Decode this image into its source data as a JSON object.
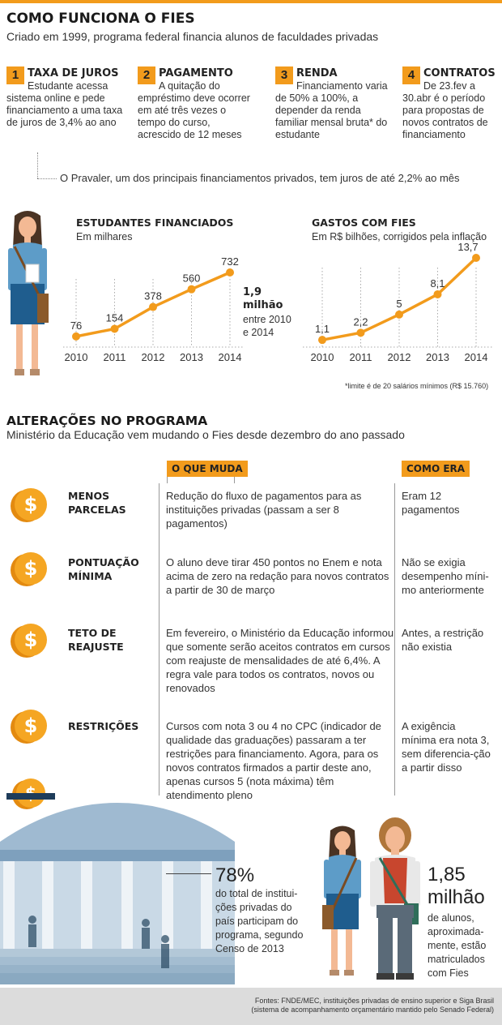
{
  "header": {
    "title": "COMO FUNCIONA O FIES",
    "subtitle": "Criado em 1999, programa federal financia alunos de faculdades privadas"
  },
  "steps": [
    {
      "num": "1",
      "title": "TAXA DE JUROS",
      "text": "Estudante acessa sistema online e pede financiamento a uma taxa de juros de 3,4% ao ano"
    },
    {
      "num": "2",
      "title": "PAGAMENTO",
      "text": "A quitação do empréstimo deve ocorrer em até três vezes o tempo do curso, acrescido de 12 meses"
    },
    {
      "num": "3",
      "title": "RENDA",
      "text": "Financiamento varia de 50% a 100%, a depender da renda familiar mensal bruta* do estudante"
    },
    {
      "num": "4",
      "title": "CONTRATOS",
      "text": "De 23.fev a 30.abr é o período para propostas de novos contratos de financiamento"
    }
  ],
  "pravaler_note": "O Pravaler, um dos principais financiamentos privados, tem juros de até 2,2% ao mês",
  "chart_data": [
    {
      "type": "line",
      "title": "ESTUDANTES FINANCIADOS",
      "subtitle": "Em milhares",
      "x": [
        "2010",
        "2011",
        "2012",
        "2013",
        "2014"
      ],
      "values": [
        76,
        154,
        378,
        560,
        732
      ],
      "labels": [
        "76",
        "154",
        "378",
        "560",
        "732"
      ],
      "annotation": {
        "value": "1,9 milhão",
        "text": "entre 2010 e 2014"
      }
    },
    {
      "type": "line",
      "title": "GASTOS COM FIES",
      "subtitle": "Em R$ bilhões, corrigidos pela inflação",
      "x": [
        "2010",
        "2011",
        "2012",
        "2013",
        "2014"
      ],
      "values": [
        1.1,
        2.2,
        5,
        8.1,
        13.7
      ],
      "labels": [
        "1,1",
        "2,2",
        "5",
        "8,1",
        "13,7"
      ]
    }
  ],
  "footnote": "*limite é de 20 salários mínimos (R$ 15.760)",
  "changes": {
    "title": "ALTERAÇÕES NO PROGRAMA",
    "subtitle": "Ministério da Educação vem mudando o Fies desde dezembro do ano passado",
    "col_what": "O QUE MUDA",
    "col_was": "COMO ERA",
    "rows": [
      {
        "label": "MENOS PARCELAS",
        "what": "Redução do fluxo de pagamentos para as instituições privadas (passam a ser 8 pagamentos)",
        "was": "Eram 12 pagamentos"
      },
      {
        "label": "PONTUAÇÃO MÍNIMA",
        "what": "O aluno deve tirar 450 pontos no Enem e nota acima de zero na redação para novos contratos a partir de 30 de março",
        "was": "Não se exigia desempenho míni-mo anteriormente"
      },
      {
        "label": "TETO DE REAJUSTE",
        "what": "Em fevereiro, o Ministério da Educação informou que somente serão aceitos contratos em cursos com reajuste de mensalidades de até 6,4%. A regra vale para todos os contratos, novos ou renovados",
        "was": "Antes, a restrição não existia"
      },
      {
        "label": "RESTRIÇÕES",
        "what": "Cursos com nota 3 ou 4 no CPC (indicador de qualidade das graduações) passaram a ter restrições para financiamento. Agora, para os novos contratos firmados a partir deste ano, apenas cursos 5 (nota máxima) têm atendimento pleno",
        "was": "A exigência mínima era nota 3, sem diferencia-ção a partir disso"
      }
    ]
  },
  "stat1": {
    "value": "78%",
    "text": "do total de institui-ções privadas do país participam do programa, segundo Censo de 2013"
  },
  "stat2": {
    "value_line1": "1,85",
    "value_line2": "milhão",
    "text": "de alunos, aproximada-mente, estão matriculados com Fies"
  },
  "sources": {
    "line1": "Fontes: FNDE/MEC, instituições privadas de ensino superior e Siga Brasil",
    "line2": "(sistema de acompanhamento orçamentário mantido pelo Senado Federal)"
  },
  "icons": {
    "coin": "dollar-coin-icon",
    "student": "student-icon",
    "building": "university-building-icon"
  },
  "colors": {
    "accent": "#f29b1c",
    "line": "#f29b1c",
    "building": "#9fbad1"
  }
}
